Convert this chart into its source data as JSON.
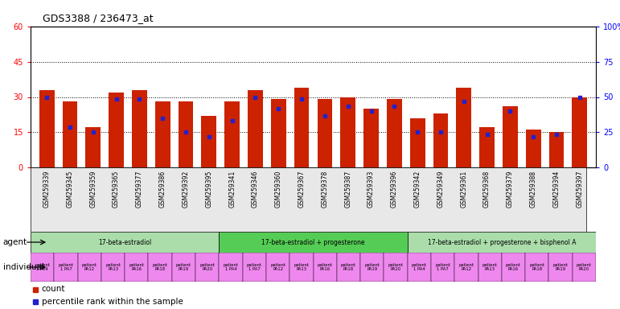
{
  "title": "GDS3388 / 236473_at",
  "gsm_ids": [
    "GSM259339",
    "GSM259345",
    "GSM259359",
    "GSM259365",
    "GSM259377",
    "GSM259386",
    "GSM259392",
    "GSM259395",
    "GSM259341",
    "GSM259346",
    "GSM259360",
    "GSM259367",
    "GSM259378",
    "GSM259387",
    "GSM259393",
    "GSM259396",
    "GSM259342",
    "GSM259349",
    "GSM259361",
    "GSM259368",
    "GSM259379",
    "GSM259388",
    "GSM259394",
    "GSM259397"
  ],
  "bar_heights": [
    33,
    28,
    17,
    32,
    33,
    28,
    28,
    22,
    28,
    33,
    29,
    34,
    29,
    30,
    25,
    29,
    21,
    23,
    34,
    17,
    26,
    16,
    15,
    30
  ],
  "blue_dot_y": [
    30,
    17,
    15,
    29,
    29,
    21,
    15,
    13,
    20,
    30,
    25,
    29,
    22,
    26,
    24,
    26,
    15,
    15,
    28,
    14,
    24,
    13,
    14,
    30
  ],
  "ylim_left": [
    0,
    60
  ],
  "yticks_left": [
    0,
    15,
    30,
    45,
    60
  ],
  "ylim_right": [
    0,
    100
  ],
  "yticks_right": [
    0,
    25,
    50,
    75,
    100
  ],
  "bar_color": "#cc2200",
  "dot_color": "#2222cc",
  "agent_groups": [
    {
      "label": "17-beta-estradiol",
      "start": 0,
      "end": 8,
      "color": "#aaddaa"
    },
    {
      "label": "17-beta-estradiol + progesterone",
      "start": 8,
      "end": 16,
      "color": "#55cc55"
    },
    {
      "label": "17-beta-estradiol + progesterone + bisphenol A",
      "start": 16,
      "end": 24,
      "color": "#aaddaa"
    }
  ],
  "individual_labels": [
    "patient\n1 PA4",
    "patient\n1 PA7",
    "patient\nPA12",
    "patient\nPA13",
    "patient\nPA16",
    "patient\nPA18",
    "patient\nPA19",
    "patient\nPA20",
    "patient\n1 PA4",
    "patient\n1 PA7",
    "patient\nPA12",
    "patient\nPA13",
    "patient\nPA16",
    "patient\nPA18",
    "patient\nPA19",
    "patient\nPA20",
    "patient\n1 PA4",
    "patient\n1 PA7",
    "patient\nPA12",
    "patient\nPA13",
    "patient\nPA16",
    "patient\nPA18",
    "patient\nPA19",
    "patient\nPA20"
  ],
  "individual_color": "#ee88ee"
}
